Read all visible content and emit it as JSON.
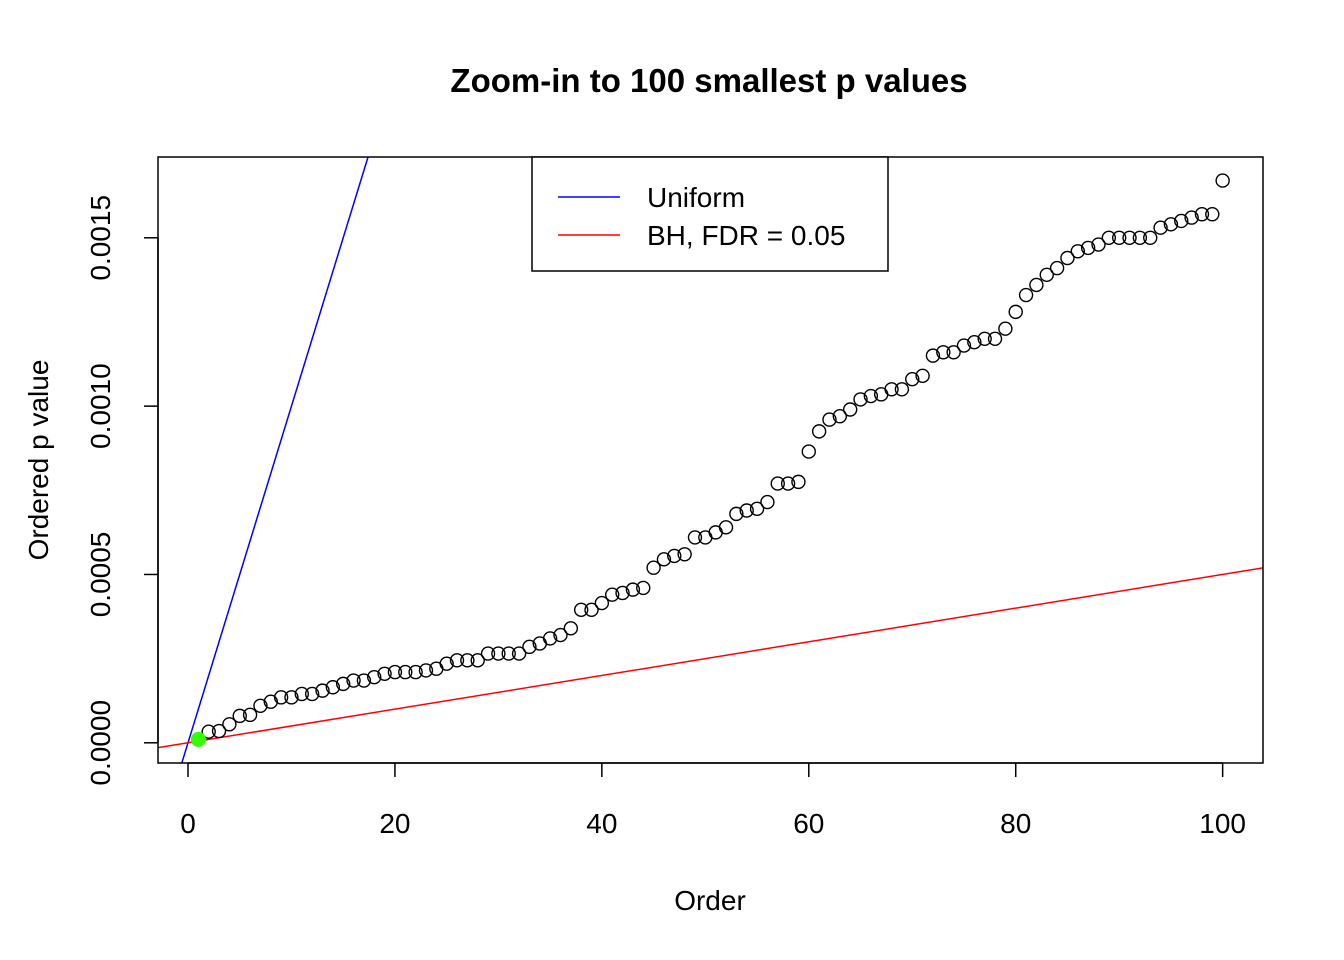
{
  "chart_data": {
    "type": "scatter",
    "title": "Zoom-in to 100 smallest p values",
    "xlabel": "Order",
    "ylabel": "Ordered p value",
    "xlim": [
      -2.9,
      103.9
    ],
    "ylim": [
      -6e-05,
      0.00174
    ],
    "xticks": [
      0,
      20,
      40,
      60,
      80,
      100
    ],
    "xtick_labels": [
      "0",
      "20",
      "40",
      "60",
      "80",
      "100"
    ],
    "yticks": [
      0,
      0.0005,
      0.001,
      0.0015
    ],
    "ytick_labels": [
      "0.0000",
      "0.0005",
      "0.0010",
      "0.0015"
    ],
    "legend": {
      "position": "top-center",
      "entries": [
        {
          "label": "Uniform",
          "color": "#0000ff"
        },
        {
          "label": "BH, FDR = 0.05",
          "color": "#ff0000"
        }
      ]
    },
    "lines": [
      {
        "name": "Uniform",
        "color": "#0000ff",
        "slope": 0.0001,
        "intercept": 0
      },
      {
        "name": "BH, FDR = 0.05",
        "color": "#ff0000",
        "slope": 5e-06,
        "intercept": 0
      }
    ],
    "highlight": {
      "x": 1,
      "y": 1e-05,
      "color": "#33ff00"
    },
    "series": [
      {
        "name": "Ordered p value",
        "marker": "open-circle",
        "x": [
          1,
          2,
          3,
          4,
          5,
          6,
          7,
          8,
          9,
          10,
          11,
          12,
          13,
          14,
          15,
          16,
          17,
          18,
          19,
          20,
          21,
          22,
          23,
          24,
          25,
          26,
          27,
          28,
          29,
          30,
          31,
          32,
          33,
          34,
          35,
          36,
          37,
          38,
          39,
          40,
          41,
          42,
          43,
          44,
          45,
          46,
          47,
          48,
          49,
          50,
          51,
          52,
          53,
          54,
          55,
          56,
          57,
          58,
          59,
          60,
          61,
          62,
          63,
          64,
          65,
          66,
          67,
          68,
          69,
          70,
          71,
          72,
          73,
          74,
          75,
          76,
          77,
          78,
          79,
          80,
          81,
          82,
          83,
          84,
          85,
          86,
          87,
          88,
          89,
          90,
          91,
          92,
          93,
          94,
          95,
          96,
          97,
          98,
          99,
          100
        ],
        "y": [
          1e-05,
          3.3e-05,
          3.5e-05,
          5.5e-05,
          8e-05,
          8.3e-05,
          0.00011,
          0.000122,
          0.000135,
          0.000135,
          0.000145,
          0.000145,
          0.000155,
          0.000165,
          0.000175,
          0.000185,
          0.000185,
          0.000195,
          0.000205,
          0.00021,
          0.00021,
          0.00021,
          0.000215,
          0.00022,
          0.000235,
          0.000245,
          0.000245,
          0.000245,
          0.000265,
          0.000265,
          0.000265,
          0.000265,
          0.000285,
          0.000295,
          0.00031,
          0.00032,
          0.00034,
          0.000395,
          0.000395,
          0.000415,
          0.00044,
          0.000445,
          0.000455,
          0.00046,
          0.00052,
          0.000545,
          0.000555,
          0.00056,
          0.00061,
          0.00061,
          0.000625,
          0.00064,
          0.00068,
          0.00069,
          0.000695,
          0.000715,
          0.00077,
          0.00077,
          0.000775,
          0.000865,
          0.000925,
          0.00096,
          0.00097,
          0.00099,
          0.00102,
          0.00103,
          0.001035,
          0.00105,
          0.00105,
          0.00108,
          0.00109,
          0.00115,
          0.00116,
          0.00116,
          0.00118,
          0.00119,
          0.0012,
          0.0012,
          0.00123,
          0.00128,
          0.00133,
          0.00136,
          0.00139,
          0.00141,
          0.00144,
          0.00146,
          0.00147,
          0.00148,
          0.0015,
          0.0015,
          0.0015,
          0.0015,
          0.0015,
          0.00153,
          0.00154,
          0.00155,
          0.00156,
          0.00157,
          0.00157,
          0.00167
        ]
      }
    ]
  }
}
